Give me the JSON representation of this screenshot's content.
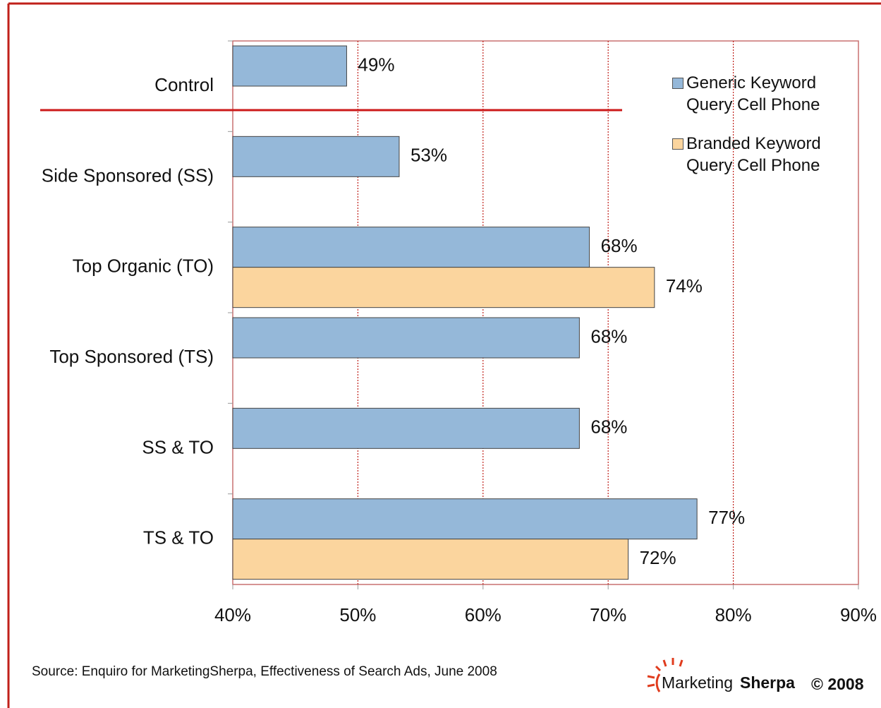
{
  "chart_data": {
    "type": "barh",
    "categories": [
      "Control",
      "Side Sponsored (SS)",
      "Top Organic (TO)",
      "Top Sponsored (TS)",
      "SS & TO",
      "TS & TO"
    ],
    "series": [
      {
        "name": "Generic Keyword Query Cell Phone",
        "color": "#95b8d9",
        "values": [
          49.1,
          53.3,
          68.5,
          67.7,
          67.7,
          77.1
        ],
        "value_labels": [
          "49%",
          "53%",
          "68%",
          "68%",
          "68%",
          "77%"
        ]
      },
      {
        "name": "Branded Keyword Query Cell Phone",
        "color": "#fbd59e",
        "values": [
          null,
          null,
          73.7,
          null,
          null,
          71.6
        ],
        "value_labels": [
          null,
          null,
          "74%",
          null,
          null,
          "72%"
        ]
      }
    ],
    "xlim": [
      40,
      90
    ],
    "xticks": [
      {
        "value": 40,
        "label": "40%"
      },
      {
        "value": 50,
        "label": "50%"
      },
      {
        "value": 60,
        "label": "60%"
      },
      {
        "value": 70,
        "label": "70%"
      },
      {
        "value": 80,
        "label": "80%"
      },
      {
        "value": 90,
        "label": "90%"
      }
    ],
    "grid": true,
    "legend": "top-right",
    "source": "Source: Enquiro for MarketingSherpa, Effectiveness of Search Ads, June 2008",
    "logo": [
      "Marketing",
      "Sherpa"
    ],
    "copyright": "© 2008"
  }
}
